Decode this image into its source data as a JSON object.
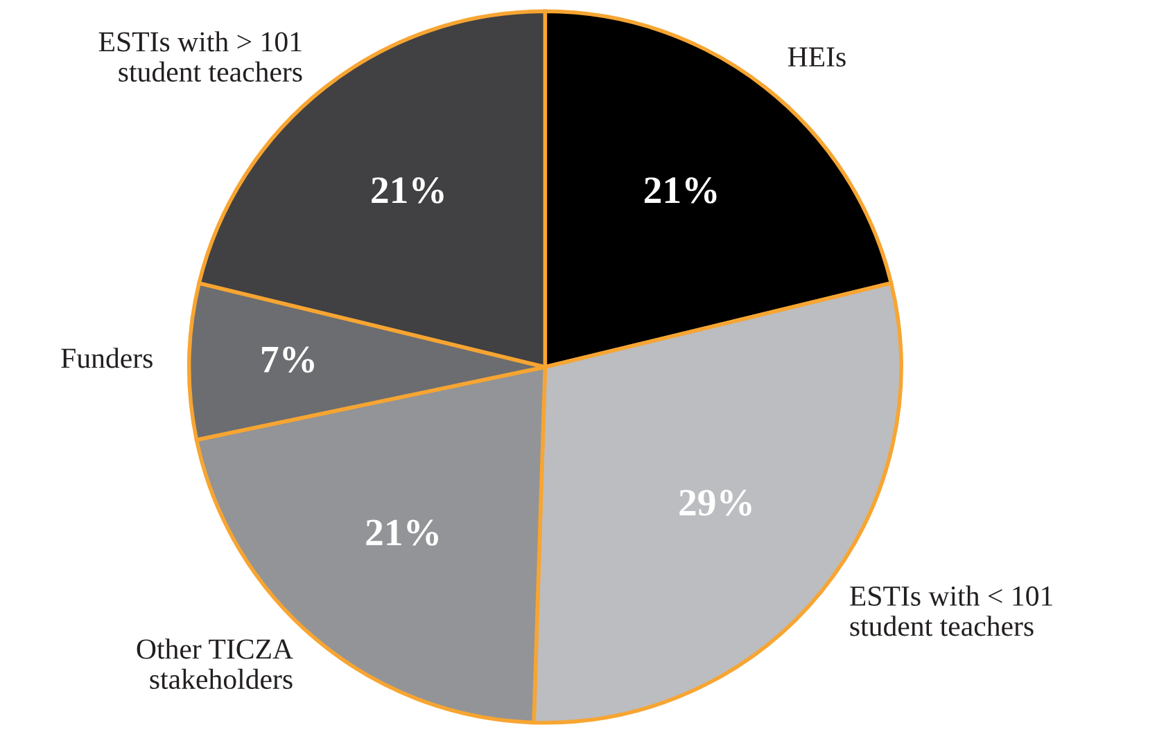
{
  "chart_data": {
    "type": "pie",
    "categories": [
      "HEIs",
      "ESTIs with < 101\nstudent teachers",
      "Other TICZA\nstakeholders",
      "Funders",
      "ESTIs with > 101\nstudent teachers"
    ],
    "values": [
      21,
      29,
      21,
      7,
      21
    ],
    "colors": [
      "#000000",
      "#bcbdc0",
      "#929497",
      "#6c6d70",
      "#414042"
    ],
    "value_labels": [
      "21%",
      "29%",
      "21%",
      "7%",
      "21%"
    ]
  }
}
